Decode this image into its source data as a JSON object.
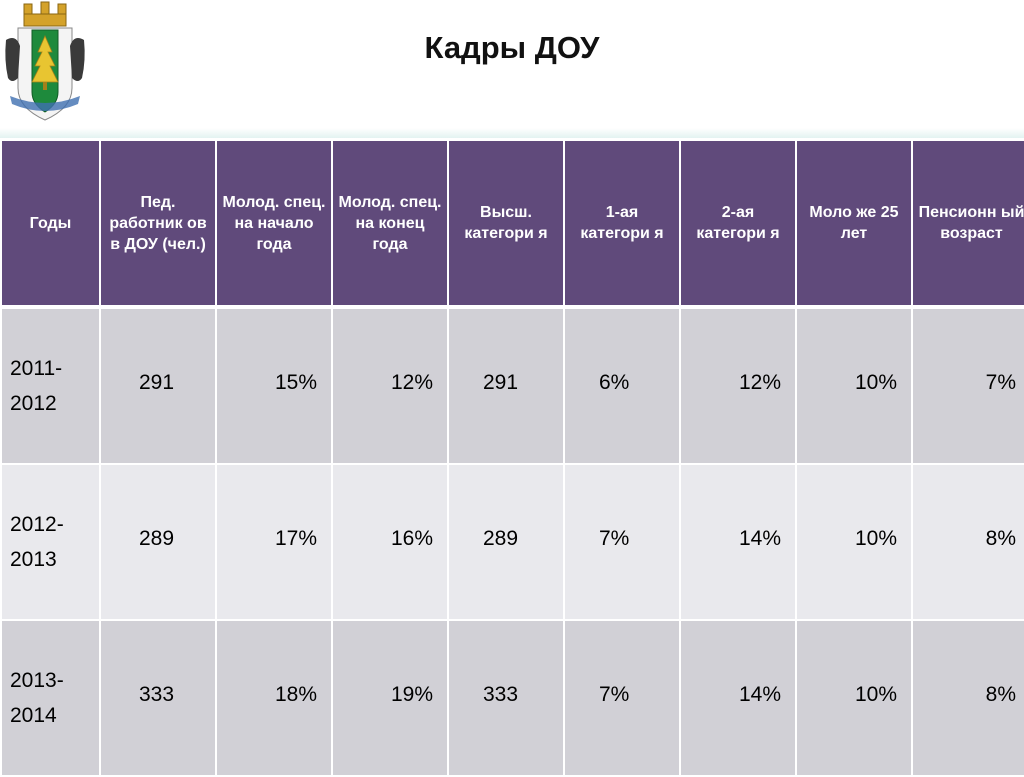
{
  "slide": {
    "title": "Кадры ДОУ"
  },
  "table": {
    "headers": [
      "Годы",
      "Пед. работник ов в ДОУ (чел.)",
      "Молод. спец. на начало года",
      "Молод. спец. на конец года",
      "Высш. категори я",
      "1-ая категори я",
      "2-ая категори я",
      "Моло же 25 лет",
      "Пенсионн ый возраст"
    ],
    "rows": [
      {
        "year": "2011-2012",
        "ped": "291",
        "young_start": "15%",
        "young_end": "12%",
        "higher": "291",
        "first": "6%",
        "second": "12%",
        "under25": "10%",
        "pension": "7%"
      },
      {
        "year": "2012-2013",
        "ped": "289",
        "young_start": "17%",
        "young_end": "16%",
        "higher": "289",
        "first": "7%",
        "second": "14%",
        "under25": "10%",
        "pension": "8%"
      },
      {
        "year": "2013-2014",
        "ped": "333",
        "young_start": "18%",
        "young_end": "19%",
        "higher": "333",
        "first": "7%",
        "second": "14%",
        "under25": "10%",
        "pension": "8%"
      }
    ]
  },
  "colors": {
    "header_bg": "#604a7b",
    "row_dark": "#d1d0d6",
    "row_light": "#e9e9ed"
  }
}
